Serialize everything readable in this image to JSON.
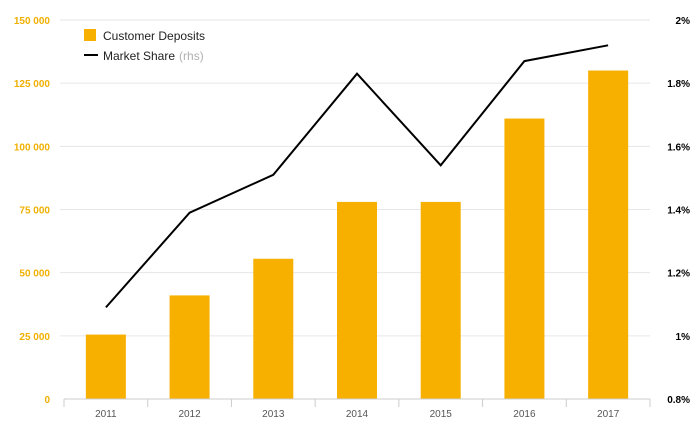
{
  "colors": {
    "bar": "#f7b000",
    "line": "#000000",
    "left_axis_text": "#f0b000",
    "grid": "#e6e6e6",
    "axis": "#cccccc",
    "legend_suffix": "#b0b0b0"
  },
  "chart_data": {
    "type": "bar",
    "categories": [
      "2011",
      "2012",
      "2013",
      "2014",
      "2015",
      "2016",
      "2017"
    ],
    "series": [
      {
        "name": "Customer Deposits",
        "type": "bar",
        "axis": "left",
        "values": [
          25500,
          41000,
          55500,
          78000,
          78000,
          111000,
          130000
        ]
      },
      {
        "name": "Market Share",
        "type": "line",
        "axis": "right",
        "values": [
          1.09,
          1.39,
          1.51,
          1.83,
          1.54,
          1.87,
          1.92
        ]
      }
    ],
    "left_axis": {
      "ylim": [
        0,
        150000
      ],
      "ticks": [
        "0",
        "25 000",
        "50 000",
        "75 000",
        "100 000",
        "125 000",
        "150 000"
      ]
    },
    "right_axis": {
      "ylim": [
        0.8,
        2.0
      ],
      "ticks": [
        "0.8%",
        "1%",
        "1.2%",
        "1.4%",
        "1.6%",
        "1.8%",
        "2%"
      ]
    },
    "grid": true,
    "legend": {
      "position": "top-left",
      "items": [
        {
          "label": "Customer Deposits",
          "suffix": ""
        },
        {
          "label": "Market Share",
          "suffix": "(rhs)"
        }
      ]
    }
  }
}
